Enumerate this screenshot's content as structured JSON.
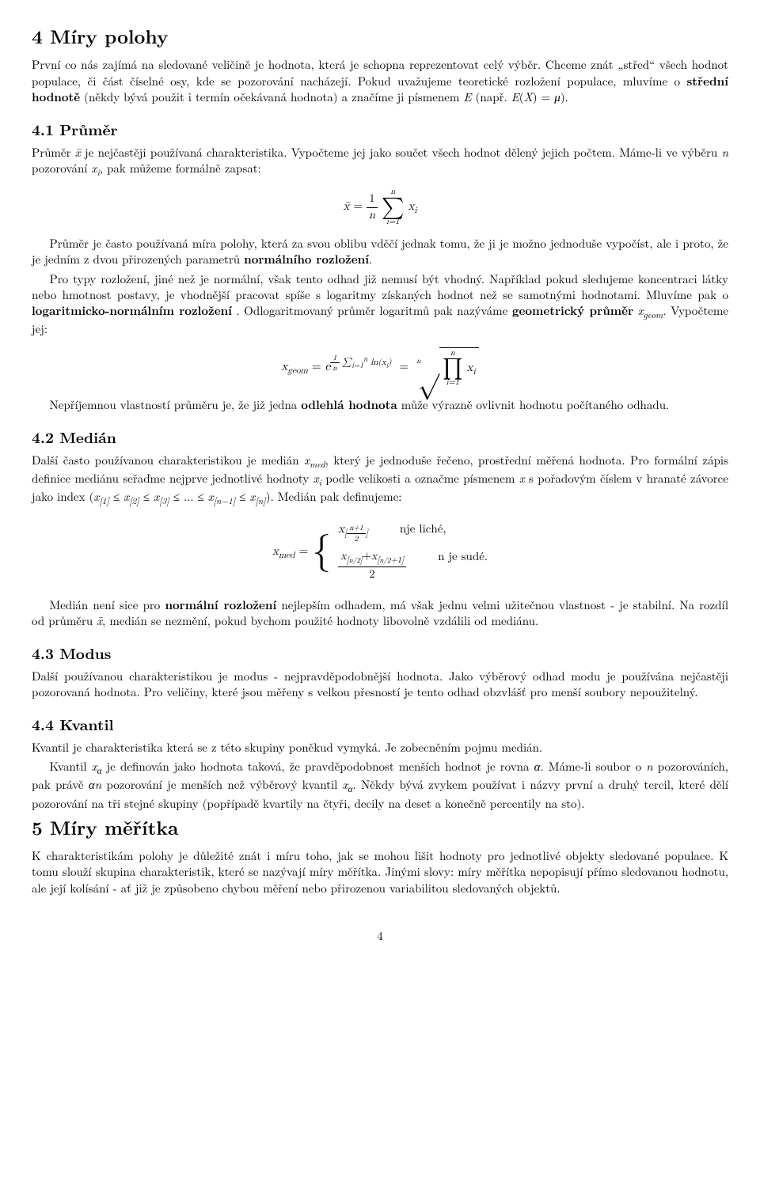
{
  "s4": {
    "title": "4   Míry polohy",
    "p1": "První co nás zajímá na sledované veličině je hodnota, která je schopna reprezentovat celý výběr. Chceme znát „střed“ všech hodnot populace, či část číselné osy, kde se pozorování nacházejí. Pokud uvažujeme teoretické rozložení populace, mluvíme o střední hodnotě (někdy bývá použit i termín očekávaná hodnota) a značíme ji písmenem E (např. E(X) = μ)."
  },
  "s41": {
    "title": "4.1   Průměr",
    "p1": "Průměr x̄ je nejčastěji používaná charakteristika. Vypočteme jej jako součet všech hodnot dělený jejich počtem. Máme-li ve výběru n pozorování xᵢ, pak můžeme formálně zapsat:",
    "p2": "Průměr je často používaná míra polohy, která za svou oblibu vděčí jednak tomu, že ji je možno jednoduše vypočíst, ale i proto, že je jedním z dvou přirozených parametrů normálního rozložení.",
    "p3": "Pro typy rozložení, jiné než je normální, však tento odhad již nemusí být vhodný. Například pokud sledujeme koncentraci látky nebo hmotnost postavy, je vhodnější pracovat spíše s logaritmy získaných hodnot než se samotnými hodnotami. Mluvíme pak o logaritmicko-normálním rozložení . Odlogaritmovaný průměr logaritmů pak nazýváme geometrický průměr x_geom. Vypočteme jej:",
    "p4": "Nepříjemnou vlastností průměru je, že již jedna odlehlá hodnota může výrazně ovlivnit hodnotu počítaného odhadu."
  },
  "s42": {
    "title": "4.2   Medián",
    "p1": "Další často používanou charakteristikou je medián x_med, který je jednoduše řečeno, prostřední měřená hodnota. Pro formální zápis definice mediánu seřaďme nejprve jednotlivé hodnoty xᵢ podle velikosti a označme písmenem x s pořadovým číslem v hranaté závorce jako index (x[1] ≤ x[2] ≤ x[3] ≤ ... ≤ x[n−1] ≤ x[n]). Medián pak definujeme:",
    "case1_cond": "nje liché,",
    "case2_cond": "n je sudé.",
    "p2": "Medián není sice pro normální rozložení nejlepším odhadem, má však jednu velmi užitečnou vlastnost - je stabilní. Na rozdíl od průměru x̄, medián se nezmění, pokud bychom použité hodnoty libovolně vzdálili od mediánu."
  },
  "s43": {
    "title": "4.3   Modus",
    "p1": "Další používanou charakteristikou je modus - nejpravděpodobnější hodnota. Jako výběrový odhad modu je používána nejčastěji pozorovaná hodnota. Pro veličiny, které jsou měřeny s velkou přesností je tento odhad obzvlášť pro menší soubory nepoužitelný."
  },
  "s44": {
    "title": "4.4   Kvantil",
    "p1": "Kvantil je charakteristika která se z této skupiny poněkud vymyká. Je zobecněním pojmu medián.",
    "p2": "Kvantil xα je definován jako hodnota taková, že pravděpodobnost menších hodnot je rovna α. Máme-li soubor o n pozorováních, pak právě αn pozorování je menších než výběrový kvantil xα. Někdy bývá zvykem používat i názvy první a druhý tercil, které dělí pozorování na tři stejné skupiny (popřípadě kvartily na čtyři, decily na deset a konečně percentily na sto)."
  },
  "s5": {
    "title": "5   Míry měřítka",
    "p1": "K charakteristikám polohy je důležité znát i míru toho, jak se mohou lišit hodnoty pro jednotlivé objekty sledované populace. K tomu slouží skupina charakteristik, které se nazývají míry měřítka. Jinými slovy: míry měřítka nepopisují přímo sledovanou hodnotu, ale její kolísání - ať již je způsobeno chybou měření nebo přirozenou variabilitou sledovaných objektů."
  },
  "pagenum": "4"
}
